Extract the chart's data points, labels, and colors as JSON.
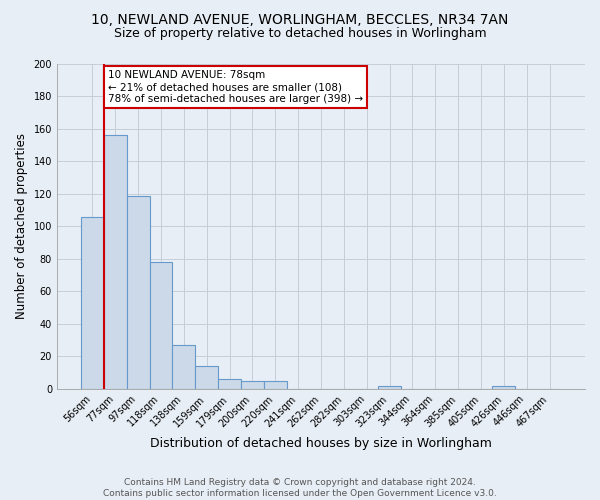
{
  "title1": "10, NEWLAND AVENUE, WORLINGHAM, BECCLES, NR34 7AN",
  "title2": "Size of property relative to detached houses in Worlingham",
  "xlabel": "Distribution of detached houses by size in Worlingham",
  "ylabel": "Number of detached properties",
  "bar_labels": [
    "56sqm",
    "77sqm",
    "97sqm",
    "118sqm",
    "138sqm",
    "159sqm",
    "179sqm",
    "200sqm",
    "220sqm",
    "241sqm",
    "262sqm",
    "282sqm",
    "303sqm",
    "323sqm",
    "344sqm",
    "364sqm",
    "385sqm",
    "405sqm",
    "426sqm",
    "446sqm",
    "467sqm"
  ],
  "bar_values": [
    106,
    156,
    119,
    78,
    27,
    14,
    6,
    5,
    5,
    0,
    0,
    0,
    0,
    2,
    0,
    0,
    0,
    0,
    2,
    0,
    0
  ],
  "bar_color": "#ccd9e8",
  "bar_edge_color": "#6699cc",
  "ylim": [
    0,
    200
  ],
  "yticks": [
    0,
    20,
    40,
    60,
    80,
    100,
    120,
    140,
    160,
    180,
    200
  ],
  "property_line_x": 1,
  "property_line_color": "#cc0000",
  "annotation_title": "10 NEWLAND AVENUE: 78sqm",
  "annotation_line1": "← 21% of detached houses are smaller (108)",
  "annotation_line2": "78% of semi-detached houses are larger (398) →",
  "annotation_box_color": "#ffffff",
  "annotation_box_edge_color": "#cc0000",
  "footer1": "Contains HM Land Registry data © Crown copyright and database right 2024.",
  "footer2": "Contains public sector information licensed under the Open Government Licence v3.0.",
  "background_color": "#e8eef5",
  "plot_bg_color": "#e8eef5",
  "grid_color": "#c5cfd8",
  "title1_fontsize": 10,
  "title2_fontsize": 9,
  "xlabel_fontsize": 9,
  "ylabel_fontsize": 8.5,
  "tick_fontsize": 7,
  "footer_fontsize": 6.5
}
